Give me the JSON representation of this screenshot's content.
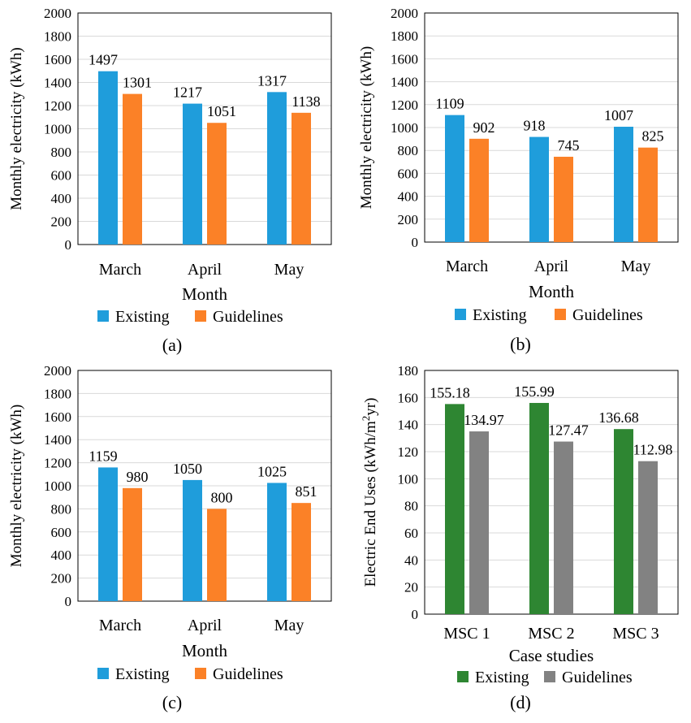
{
  "chart_data": [
    {
      "type": "bar",
      "panel_label": "(a)",
      "panel_letter": "a",
      "categories": [
        "March",
        "April",
        "May"
      ],
      "series": [
        {
          "name": "Existing",
          "color": "#1f9ddb",
          "values": [
            1497,
            1217,
            1317
          ],
          "labels": [
            "1497",
            "1217",
            "1317"
          ]
        },
        {
          "name": "Guidelines",
          "color": "#fb8127",
          "values": [
            1301,
            1051,
            1138
          ],
          "labels": [
            "1301",
            "1051",
            "1138"
          ]
        }
      ],
      "xlabel": "Month",
      "ylabel": "Monthly electricity (kWh)",
      "ylim": [
        0,
        2000
      ],
      "yticks": [
        "0",
        "200",
        "400",
        "600",
        "800",
        "1000",
        "1200",
        "1400",
        "1600",
        "1800",
        "2000"
      ],
      "grid": true,
      "legend": "bottom"
    },
    {
      "type": "bar",
      "panel_label": "(b)",
      "panel_letter": "b",
      "categories": [
        "March",
        "April",
        "May"
      ],
      "series": [
        {
          "name": "Existing",
          "color": "#1f9ddb",
          "values": [
            1109,
            918,
            1007
          ],
          "labels": [
            "1109",
            "918",
            "1007"
          ]
        },
        {
          "name": "Guidelines",
          "color": "#fb8127",
          "values": [
            902,
            745,
            825
          ],
          "labels": [
            "902",
            "745",
            "825"
          ]
        }
      ],
      "xlabel": "Month",
      "ylabel": "Monthly electricity (kWh)",
      "ylim": [
        0,
        2000
      ],
      "yticks": [
        "0",
        "200",
        "400",
        "600",
        "800",
        "1000",
        "1200",
        "1400",
        "1600",
        "1800",
        "2000"
      ],
      "grid": true,
      "legend": "bottom"
    },
    {
      "type": "bar",
      "panel_label": "(c)",
      "panel_letter": "c",
      "categories": [
        "March",
        "April",
        "May"
      ],
      "series": [
        {
          "name": "Existing",
          "color": "#1f9ddb",
          "values": [
            1159,
            1050,
            1025
          ],
          "labels": [
            "1159",
            "1050",
            "1025"
          ]
        },
        {
          "name": "Guidelines",
          "color": "#fb8127",
          "values": [
            980,
            800,
            851
          ],
          "labels": [
            "980",
            "800",
            "851"
          ]
        }
      ],
      "xlabel": "Month",
      "ylabel": "Monthly electricity (kWh)",
      "ylim": [
        0,
        2000
      ],
      "yticks": [
        "0",
        "200",
        "400",
        "600",
        "800",
        "1000",
        "1200",
        "1400",
        "1600",
        "1800",
        "2000"
      ],
      "grid": true,
      "legend": "bottom"
    },
    {
      "type": "bar",
      "panel_label": "(d)",
      "panel_letter": "d",
      "categories": [
        "MSC 1",
        "MSC 2",
        "MSC 3"
      ],
      "series": [
        {
          "name": "Existing",
          "color": "#2e8632",
          "values": [
            155.18,
            155.99,
            136.68
          ],
          "labels": [
            "155.18",
            "155.99",
            "136.68"
          ]
        },
        {
          "name": "Guidelines",
          "color": "#828282",
          "values": [
            134.97,
            127.47,
            112.98
          ],
          "labels": [
            "134.97",
            "127.47",
            "112.98"
          ]
        }
      ],
      "xlabel": "Case studies",
      "ylabel": "Electric End Uses (kWh/m²yr)",
      "ylabel_parts": {
        "main": "Electric End Uses (kWh/m",
        "sup": "2",
        "tail": "yr)"
      },
      "ylim": [
        0,
        180
      ],
      "yticks": [
        "0",
        "20",
        "40",
        "60",
        "80",
        "100",
        "120",
        "140",
        "160",
        "180"
      ],
      "grid": true,
      "legend": "bottom"
    }
  ]
}
